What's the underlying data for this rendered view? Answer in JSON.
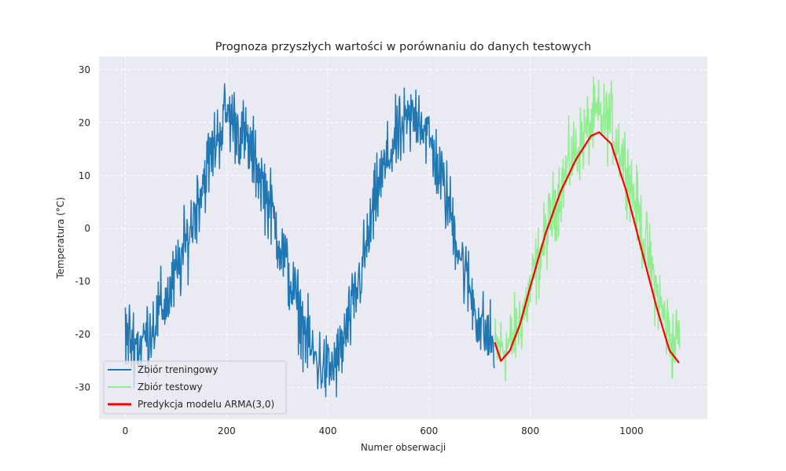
{
  "chart_data": {
    "type": "line",
    "title": "Prognoza przyszłych wartości w porównaniu do danych testowych",
    "xlabel": "Numer obserwacji",
    "ylabel": "Temperatura (°C)",
    "xlim": [
      -52,
      1150
    ],
    "ylim": [
      -36,
      32.5
    ],
    "xticks": [
      0,
      200,
      400,
      600,
      800,
      1000
    ],
    "yticks": [
      -30,
      -20,
      -10,
      0,
      10,
      20,
      30
    ],
    "grid": true,
    "background": "#eaeaf2",
    "legend_position": "lower-left",
    "series": [
      {
        "name": "Zbiór treningowy",
        "color": "#1f77b4",
        "x_start": 0,
        "x_end": 729,
        "approx_points": [
          [
            0,
            -20
          ],
          [
            30,
            -22
          ],
          [
            60,
            -17
          ],
          [
            90,
            -12
          ],
          [
            120,
            -3
          ],
          [
            150,
            8
          ],
          [
            180,
            17
          ],
          [
            200,
            22
          ],
          [
            230,
            18
          ],
          [
            260,
            12
          ],
          [
            290,
            3
          ],
          [
            320,
            -8
          ],
          [
            350,
            -18
          ],
          [
            370,
            -24
          ],
          [
            400,
            -27
          ],
          [
            420,
            -25
          ],
          [
            450,
            -15
          ],
          [
            480,
            -2
          ],
          [
            500,
            8
          ],
          [
            530,
            16
          ],
          [
            560,
            20
          ],
          [
            580,
            22
          ],
          [
            610,
            14
          ],
          [
            640,
            4
          ],
          [
            670,
            -8
          ],
          [
            700,
            -18
          ],
          [
            729,
            -22
          ]
        ],
        "min": -33,
        "max": 29.5
      },
      {
        "name": "Zbiór testowy",
        "color": "#90ee90",
        "x_start": 730,
        "x_end": 1095,
        "approx_points": [
          [
            730,
            -23
          ],
          [
            760,
            -22
          ],
          [
            790,
            -15
          ],
          [
            820,
            -5
          ],
          [
            850,
            5
          ],
          [
            880,
            13
          ],
          [
            910,
            18
          ],
          [
            930,
            21
          ],
          [
            960,
            20
          ],
          [
            990,
            12
          ],
          [
            1020,
            0
          ],
          [
            1050,
            -12
          ],
          [
            1080,
            -22
          ],
          [
            1095,
            -20
          ]
        ],
        "min": -33,
        "max": 29
      },
      {
        "name": "Predykcja modelu ARMA(3,0)",
        "color": "#ff0000",
        "x_start": 730,
        "x_end": 1095,
        "approx_points": [
          [
            730,
            -21.5
          ],
          [
            742,
            -25
          ],
          [
            760,
            -23
          ],
          [
            780,
            -18
          ],
          [
            800,
            -11
          ],
          [
            830,
            -1
          ],
          [
            860,
            7
          ],
          [
            890,
            13
          ],
          [
            920,
            17.5
          ],
          [
            936,
            18.2
          ],
          [
            960,
            16
          ],
          [
            990,
            7
          ],
          [
            1020,
            -4
          ],
          [
            1050,
            -15
          ],
          [
            1075,
            -23
          ],
          [
            1095,
            -25.5
          ]
        ],
        "min": -25.5,
        "max": 18.2
      }
    ]
  }
}
